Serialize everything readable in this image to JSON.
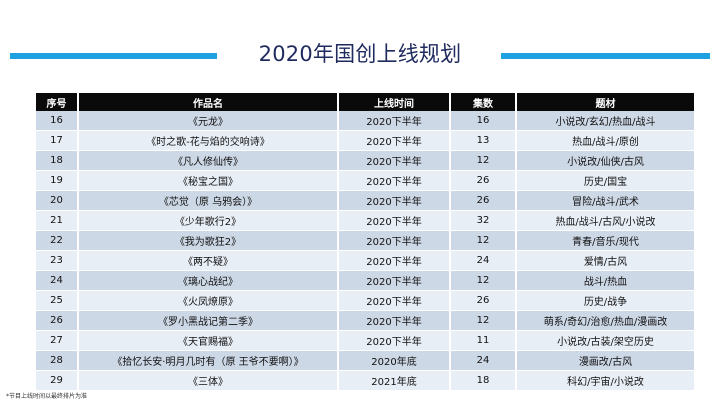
{
  "title": "2020年国创上线规划",
  "table": {
    "headers": [
      "序号",
      "作品名",
      "上线时间",
      "集数",
      "题材"
    ],
    "rows": [
      [
        "16",
        "《元龙》",
        "2020下半年",
        "16",
        "小说改/玄幻/热血/战斗"
      ],
      [
        "17",
        "《时之歌-花与焰的交响诗》",
        "2020下半年",
        "13",
        "热血/战斗/原创"
      ],
      [
        "18",
        "《凡人修仙传》",
        "2020下半年",
        "12",
        "小说改/仙侠/古风"
      ],
      [
        "19",
        "《秘宝之国》",
        "2020下半年",
        "26",
        "历史/国宝"
      ],
      [
        "20",
        "《芯觉（原 乌鸦会）》",
        "2020下半年",
        "26",
        "冒险/战斗/武术"
      ],
      [
        "21",
        "《少年歌行2》",
        "2020下半年",
        "32",
        "热血/战斗/古风/小说改"
      ],
      [
        "22",
        "《我为歌狂2》",
        "2020下半年",
        "12",
        "青春/音乐/现代"
      ],
      [
        "23",
        "《两不疑》",
        "2020下半年",
        "24",
        "爱情/古风"
      ],
      [
        "24",
        "《璃心战纪》",
        "2020下半年",
        "12",
        "战斗/热血"
      ],
      [
        "25",
        "《火凤燎原》",
        "2020下半年",
        "26",
        "历史/战争"
      ],
      [
        "26",
        "《罗小黑战记第二季》",
        "2020下半年",
        "12",
        "萌系/奇幻/治愈/热血/漫画改"
      ],
      [
        "27",
        "《天官赐福》",
        "2020下半年",
        "11",
        "小说改/古装/架空历史"
      ],
      [
        "28",
        "《拾忆长安·明月几时有（原 王爷不要啊）》",
        "2020年底",
        "24",
        "漫画改/古风"
      ],
      [
        "29",
        "《三体》",
        "2021年底",
        "18",
        "科幻/宇宙/小说改"
      ]
    ]
  },
  "footnote": "*节目上线时间以最终排片为准",
  "colors": {
    "accent_bar": "#1ea0e1",
    "title": "#1f2a5e",
    "header_bg": "#0a0a0a",
    "row_dark": "#cdd8e6",
    "row_light": "#e8eef6"
  }
}
